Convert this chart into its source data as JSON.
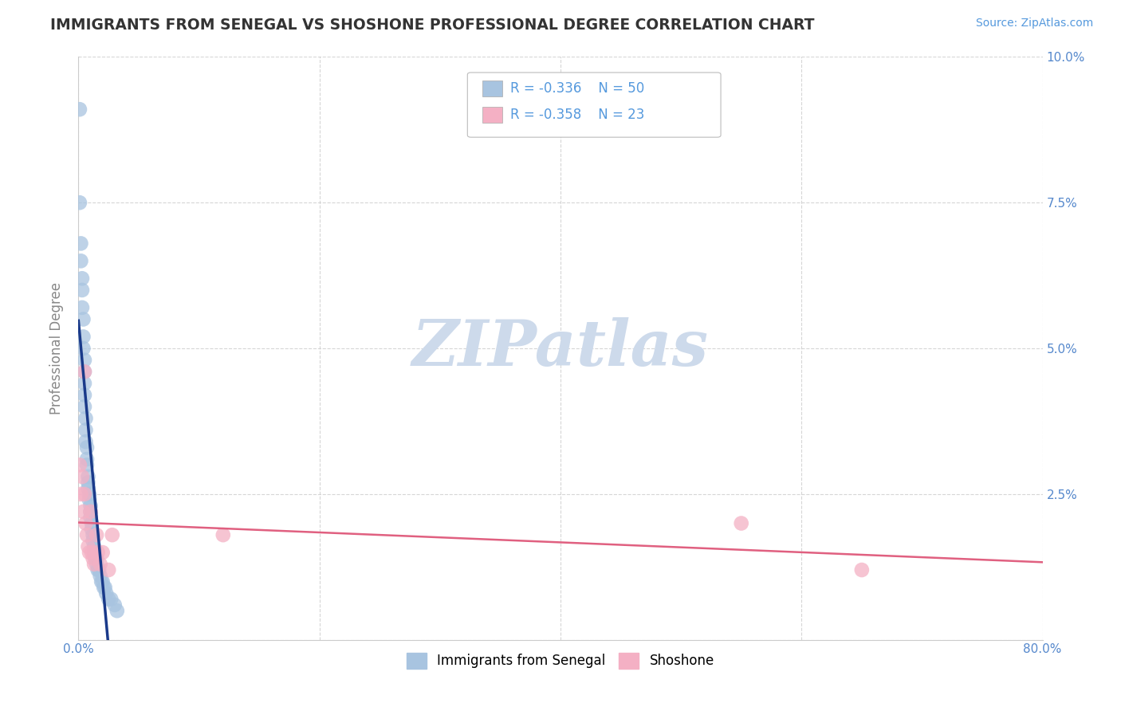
{
  "title": "IMMIGRANTS FROM SENEGAL VS SHOSHONE PROFESSIONAL DEGREE CORRELATION CHART",
  "source_text": "Source: ZipAtlas.com",
  "ylabel": "Professional Degree",
  "legend_label1": "Immigrants from Senegal",
  "legend_label2": "Shoshone",
  "r1": -0.336,
  "n1": 50,
  "r2": -0.358,
  "n2": 23,
  "color1": "#a8c4e0",
  "color2": "#f4b0c4",
  "line_color1": "#1a3a8a",
  "line_color2": "#e06080",
  "watermark_color": "#cddaeb",
  "xlim": [
    0.0,
    0.8
  ],
  "ylim": [
    0.0,
    0.1
  ],
  "xticks": [
    0.0,
    0.2,
    0.4,
    0.6,
    0.8
  ],
  "yticks": [
    0.0,
    0.025,
    0.05,
    0.075,
    0.1
  ],
  "xticklabels": [
    "0.0%",
    "",
    "",
    "",
    "80.0%"
  ],
  "yticklabels_left": [
    "",
    "",
    "",
    "",
    ""
  ],
  "yticklabels_right": [
    "",
    "2.5%",
    "5.0%",
    "7.5%",
    "10.0%"
  ],
  "background_color": "#ffffff",
  "grid_color": "#cccccc",
  "senegal_x": [
    0.001,
    0.001,
    0.002,
    0.002,
    0.003,
    0.003,
    0.003,
    0.004,
    0.004,
    0.004,
    0.005,
    0.005,
    0.005,
    0.005,
    0.005,
    0.006,
    0.006,
    0.006,
    0.007,
    0.007,
    0.007,
    0.008,
    0.008,
    0.008,
    0.009,
    0.009,
    0.01,
    0.01,
    0.01,
    0.011,
    0.011,
    0.012,
    0.012,
    0.013,
    0.013,
    0.014,
    0.015,
    0.015,
    0.016,
    0.017,
    0.018,
    0.019,
    0.02,
    0.021,
    0.022,
    0.023,
    0.025,
    0.027,
    0.03,
    0.032
  ],
  "senegal_y": [
    0.091,
    0.075,
    0.068,
    0.065,
    0.062,
    0.06,
    0.057,
    0.055,
    0.052,
    0.05,
    0.048,
    0.046,
    0.044,
    0.042,
    0.04,
    0.038,
    0.036,
    0.034,
    0.033,
    0.031,
    0.03,
    0.028,
    0.027,
    0.026,
    0.025,
    0.024,
    0.023,
    0.022,
    0.021,
    0.02,
    0.019,
    0.018,
    0.017,
    0.016,
    0.015,
    0.014,
    0.014,
    0.013,
    0.012,
    0.012,
    0.011,
    0.01,
    0.01,
    0.009,
    0.009,
    0.008,
    0.007,
    0.007,
    0.006,
    0.005
  ],
  "shoshone_x": [
    0.001,
    0.002,
    0.003,
    0.004,
    0.005,
    0.005,
    0.006,
    0.007,
    0.008,
    0.009,
    0.01,
    0.011,
    0.012,
    0.013,
    0.015,
    0.016,
    0.018,
    0.02,
    0.025,
    0.028,
    0.12,
    0.55,
    0.65
  ],
  "shoshone_y": [
    0.03,
    0.025,
    0.028,
    0.022,
    0.046,
    0.025,
    0.02,
    0.018,
    0.016,
    0.015,
    0.022,
    0.015,
    0.014,
    0.013,
    0.018,
    0.015,
    0.013,
    0.015,
    0.012,
    0.018,
    0.018,
    0.02,
    0.012
  ]
}
